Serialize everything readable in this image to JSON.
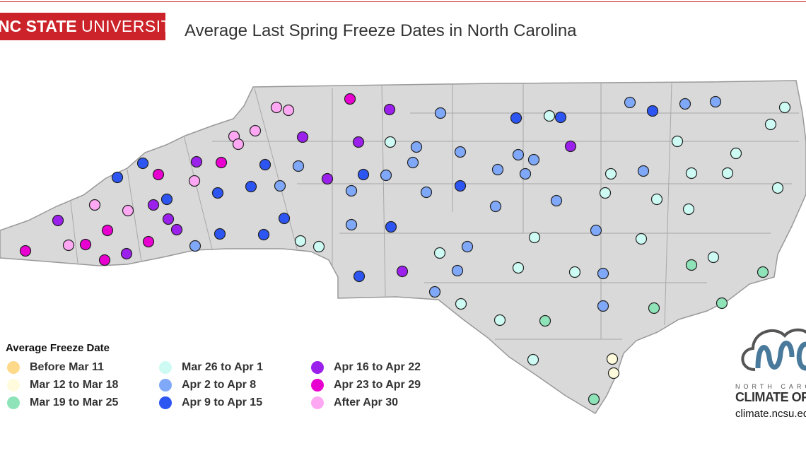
{
  "header": {
    "logo_bold": "NC STATE",
    "logo_light": "UNIVERSITY",
    "title": "Average Last Spring Freeze Dates in North Carolina"
  },
  "legend": {
    "title": "Average Freeze Date",
    "categories": [
      {
        "label": "Before Mar 11",
        "color": "#ffd98a"
      },
      {
        "label": "Mar 12 to Mar 18",
        "color": "#fffbdc"
      },
      {
        "label": "Mar 19 to Mar 25",
        "color": "#8fe3b8"
      },
      {
        "label": "Mar 26 to Apr 1",
        "color": "#cdfbf3"
      },
      {
        "label": "Apr 2 to Apr 8",
        "color": "#80a8f8"
      },
      {
        "label": "Apr 9 to Apr 15",
        "color": "#2d55f2"
      },
      {
        "label": "Apr 16 to Apr 22",
        "color": "#9b20ec"
      },
      {
        "label": "Apr 23 to Apr 29",
        "color": "#e800d0"
      },
      {
        "label": "After Apr 30",
        "color": "#fea8f4"
      }
    ]
  },
  "map": {
    "state_fill": "#d9d9d9",
    "border_color": "#999999",
    "station_categories": [
      7,
      6,
      8,
      8,
      4,
      5,
      3,
      5,
      4,
      5,
      4,
      4,
      3,
      3,
      8,
      8,
      8,
      6,
      6,
      3,
      4,
      4,
      4,
      4,
      6,
      3,
      3,
      5,
      5,
      7,
      6,
      7,
      5,
      4,
      4,
      5,
      4,
      6,
      8,
      5,
      5,
      4,
      4,
      4,
      5,
      4,
      4,
      3,
      4,
      3,
      3,
      3,
      3,
      3,
      4,
      4,
      3,
      8,
      8,
      6,
      5,
      6,
      6,
      6,
      7,
      5,
      5,
      5,
      3,
      3,
      4,
      5,
      3,
      4,
      3,
      7,
      8,
      7,
      7,
      6,
      7,
      4,
      3,
      4,
      3,
      5,
      6,
      4,
      3,
      3,
      4,
      2,
      2,
      4,
      3,
      4,
      2,
      2,
      3,
      2,
      3,
      1,
      1,
      2
    ]
  },
  "branding": {
    "org_small": "NORTH CAROLINA",
    "org_big": "CLIMATE OFFICE",
    "url": "climate.ncsu.edu",
    "logo_color": "#4a7a9b"
  }
}
